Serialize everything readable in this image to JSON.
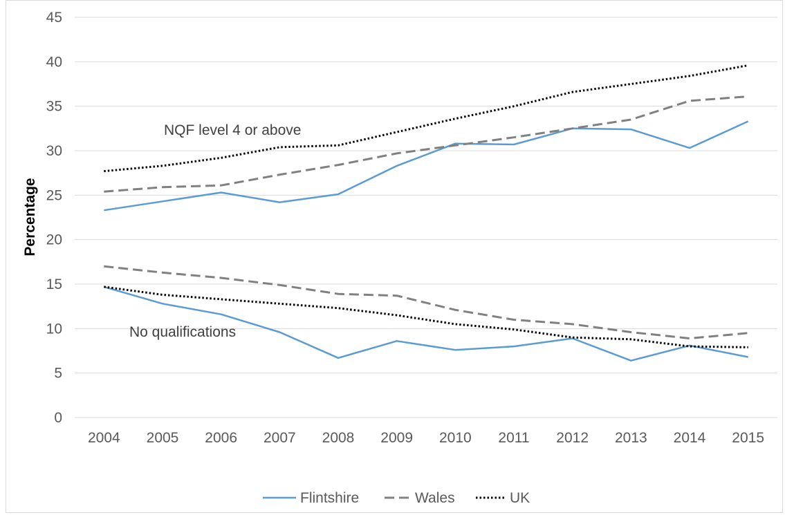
{
  "chart_data": {
    "type": "line",
    "title": "",
    "xlabel": "",
    "ylabel": "Percentage",
    "ylim": [
      0,
      45
    ],
    "yticks": [
      0,
      5,
      10,
      15,
      20,
      25,
      30,
      35,
      40,
      45
    ],
    "categories": [
      "2004",
      "2005",
      "2006",
      "2007",
      "2008",
      "2009",
      "2010",
      "2011",
      "2012",
      "2013",
      "2014",
      "2015"
    ],
    "grid": "horizontal",
    "legend_position": "bottom",
    "annotations": [
      {
        "text": "NQF level 4 or above"
      },
      {
        "text": "No qualifications"
      }
    ],
    "series": [
      {
        "name": "Flintshire",
        "group": "NQF level 4 or above",
        "color": "#5b9bd5",
        "style": "solid",
        "values": [
          23.3,
          24.3,
          25.3,
          24.2,
          25.1,
          28.3,
          30.8,
          30.7,
          32.5,
          32.4,
          30.3,
          33.3
        ]
      },
      {
        "name": "Wales",
        "group": "NQF level 4 or above",
        "color": "#808080",
        "style": "dashed",
        "values": [
          25.4,
          25.9,
          26.1,
          27.3,
          28.4,
          29.7,
          30.6,
          31.5,
          32.5,
          33.5,
          35.6,
          36.1
        ]
      },
      {
        "name": "UK",
        "group": "NQF level 4 or above",
        "color": "#000000",
        "style": "dotted",
        "values": [
          27.7,
          28.3,
          29.2,
          30.4,
          30.6,
          32.1,
          33.6,
          35.0,
          36.6,
          37.5,
          38.4,
          39.6
        ]
      },
      {
        "name": "Flintshire",
        "group": "No qualifications",
        "color": "#5b9bd5",
        "style": "solid",
        "values": [
          14.7,
          12.8,
          11.6,
          9.6,
          6.7,
          8.6,
          7.6,
          8.0,
          8.9,
          6.4,
          8.1,
          6.8
        ]
      },
      {
        "name": "Wales",
        "group": "No qualifications",
        "color": "#808080",
        "style": "dashed",
        "values": [
          17.0,
          16.3,
          15.7,
          14.9,
          13.9,
          13.7,
          12.1,
          11.0,
          10.5,
          9.6,
          8.9,
          9.5
        ]
      },
      {
        "name": "UK",
        "group": "No qualifications",
        "color": "#000000",
        "style": "dotted",
        "values": [
          14.7,
          13.8,
          13.3,
          12.8,
          12.3,
          11.5,
          10.5,
          9.9,
          9.0,
          8.8,
          8.0,
          7.9
        ]
      }
    ],
    "legend": [
      {
        "name": "Flintshire",
        "color": "#5b9bd5",
        "style": "solid"
      },
      {
        "name": "Wales",
        "color": "#808080",
        "style": "dashed"
      },
      {
        "name": "UK",
        "color": "#000000",
        "style": "dotted"
      }
    ]
  }
}
